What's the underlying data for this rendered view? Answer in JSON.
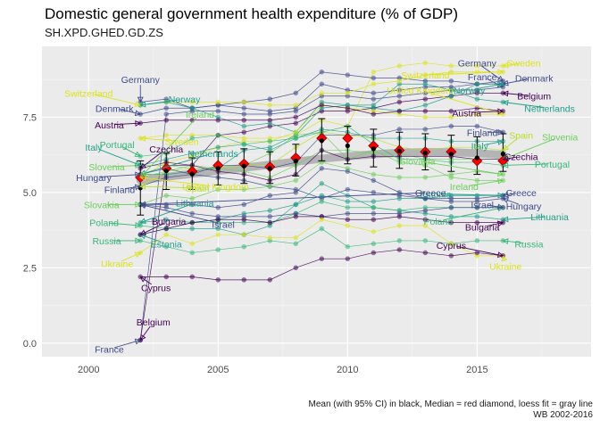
{
  "title": "Domestic general government health expenditure (% of GDP)",
  "subtitle": "SH.XPD.GHED.GD.ZS",
  "caption_line1": "Mean (with 95% CI) in black, Median = red diamond, loess fit = gray line",
  "caption_line2": "WB 2002-2016",
  "chart_data": {
    "type": "line",
    "title": "Domestic general government health expenditure (% of GDP)",
    "subtitle": "SH.XPD.GHED.GD.ZS",
    "xlabel": "",
    "ylabel": "",
    "xlim": [
      1998.2,
      2019.4
    ],
    "ylim": [
      -0.45,
      9.85
    ],
    "x_ticks": [
      2000,
      2005,
      2010,
      2015
    ],
    "y_ticks": [
      0.0,
      2.5,
      5.0,
      7.5
    ],
    "y_tick_labels": [
      "0.0",
      "2.5",
      "5.0",
      "7.5"
    ],
    "grid": true,
    "legend": "none (labels placed at line ends)",
    "x": [
      2002,
      2003,
      2004,
      2005,
      2006,
      2007,
      2008,
      2009,
      2010,
      2011,
      2012,
      2013,
      2014,
      2015,
      2016
    ],
    "series": [
      {
        "name": "Sweden",
        "color": "#DCE319",
        "start_label_pos": [
          2003.6,
          6.7
        ],
        "end_label_pos": [
          2016.8,
          9.3
        ],
        "values": [
          6.8,
          6.9,
          6.9,
          6.9,
          6.8,
          6.8,
          6.9,
          7.4,
          7.2,
          9.0,
          9.2,
          9.3,
          9.2,
          9.2,
          9.2
        ]
      },
      {
        "name": "Germany",
        "color": "#3E4A89",
        "start_label_pos": [
          2002.0,
          8.75
        ],
        "end_label_pos": [
          2015.0,
          9.3
        ],
        "values": [
          8.0,
          8.1,
          7.8,
          7.9,
          7.8,
          7.7,
          7.8,
          8.6,
          8.4,
          8.3,
          8.4,
          8.5,
          8.5,
          8.6,
          8.7
        ]
      },
      {
        "name": "France",
        "color": "#3E4A89",
        "start_label_pos": [
          2000.8,
          -0.2
        ],
        "end_label_pos": [
          2015.2,
          8.85
        ],
        "values": [
          0.1,
          7.6,
          7.7,
          7.7,
          7.6,
          7.6,
          7.7,
          8.2,
          8.2,
          8.1,
          8.2,
          8.3,
          8.4,
          8.4,
          8.5
        ]
      },
      {
        "name": "Denmark",
        "color": "#3E4A89",
        "start_label_pos": [
          2001.0,
          7.8
        ],
        "end_label_pos": [
          2017.2,
          8.8
        ],
        "values": [
          7.6,
          7.8,
          7.8,
          7.9,
          8.0,
          8.1,
          8.3,
          9.0,
          8.9,
          8.8,
          8.8,
          8.7,
          8.7,
          8.6,
          8.6
        ]
      },
      {
        "name": "Belgium",
        "color": "#440154",
        "start_label_pos": [
          2002.5,
          0.7
        ],
        "end_label_pos": [
          2017.2,
          8.2
        ],
        "values": [
          0.1,
          5.9,
          5.9,
          6.9,
          7.0,
          7.2,
          7.3,
          7.7,
          7.7,
          7.8,
          8.0,
          8.1,
          8.2,
          8.3,
          8.3
        ]
      },
      {
        "name": "Netherlands",
        "color": "#1F9E89",
        "start_label_pos": [
          2004.8,
          6.3
        ],
        "end_label_pos": [
          2017.8,
          7.8
        ],
        "values": [
          5.6,
          5.6,
          5.7,
          5.8,
          6.4,
          6.5,
          6.9,
          7.8,
          7.9,
          7.9,
          8.6,
          8.6,
          8.4,
          8.1,
          8.0
        ]
      },
      {
        "name": "Switzerland",
        "color": "#DCE319",
        "start_label_pos": [
          2000.0,
          8.3
        ],
        "end_label_pos": [
          2013.0,
          8.9
        ],
        "values": [
          7.9,
          8.0,
          8.0,
          8.0,
          8.0,
          7.9,
          7.9,
          8.3,
          8.3,
          8.6,
          8.7,
          8.9,
          9.0,
          9.0,
          9.0
        ]
      },
      {
        "name": "Norway",
        "color": "#1F9E89",
        "start_label_pos": [
          2003.7,
          8.1
        ],
        "end_label_pos": [
          2014.7,
          8.4
        ],
        "values": [
          7.9,
          8.0,
          7.8,
          7.5,
          7.2,
          7.3,
          7.0,
          8.0,
          7.9,
          7.8,
          7.7,
          7.9,
          8.2,
          8.6,
          8.6
        ]
      },
      {
        "name": "United Kingdom",
        "color": "#DCE319",
        "start_label_pos": [
          2004.9,
          5.2
        ],
        "end_label_pos": [
          2012.8,
          8.4
        ],
        "values": [
          5.5,
          6.0,
          6.2,
          6.5,
          6.7,
          6.7,
          7.0,
          7.9,
          7.8,
          7.7,
          7.6,
          7.5,
          7.5,
          7.6,
          7.6
        ]
      },
      {
        "name": "Ireland",
        "color": "#6CCE59",
        "start_label_pos": [
          2004.3,
          7.6
        ],
        "end_label_pos": [
          2014.5,
          5.2
        ],
        "values": [
          5.5,
          5.7,
          5.9,
          5.8,
          5.9,
          6.3,
          6.9,
          7.0,
          6.1,
          6.4,
          6.0,
          5.9,
          5.5,
          5.4,
          5.4
        ]
      },
      {
        "name": "Austria",
        "color": "#440154",
        "start_label_pos": [
          2000.8,
          7.25
        ],
        "end_label_pos": [
          2014.6,
          7.65
        ],
        "values": [
          7.3,
          7.4,
          7.4,
          7.4,
          7.4,
          7.4,
          7.5,
          7.9,
          7.8,
          7.6,
          7.7,
          7.7,
          7.7,
          7.8,
          7.7
        ]
      },
      {
        "name": "Finland",
        "color": "#3E4A89",
        "start_label_pos": [
          2001.2,
          5.1
        ],
        "end_label_pos": [
          2015.2,
          7.0
        ],
        "values": [
          5.2,
          5.5,
          5.6,
          5.9,
          5.9,
          5.8,
          6.0,
          6.9,
          6.9,
          6.9,
          7.1,
          7.1,
          7.2,
          7.2,
          7.0
        ]
      },
      {
        "name": "Spain",
        "color": "#B8DE29",
        "start_label_pos": [
          2004.2,
          5.15
        ],
        "end_label_pos": [
          2016.7,
          6.9
        ],
        "values": [
          5.2,
          5.7,
          5.8,
          5.8,
          5.9,
          5.9,
          6.5,
          7.0,
          6.9,
          6.8,
          6.5,
          6.4,
          6.5,
          6.5,
          6.4
        ]
      },
      {
        "name": "Slovenia",
        "color": "#6CCE59",
        "start_label_pos": [
          2000.7,
          5.85
        ],
        "end_label_pos": [
          2018.2,
          6.85
        ],
        "values": [
          5.9,
          5.9,
          5.8,
          5.8,
          5.7,
          5.5,
          5.9,
          6.4,
          6.4,
          6.3,
          6.3,
          6.1,
          6.1,
          6.1,
          6.1
        ]
      },
      {
        "name": "Italy",
        "color": "#1F9E89",
        "start_label_pos": [
          2000.2,
          6.5
        ],
        "end_label_pos": [
          2015.1,
          6.55
        ],
        "values": [
          5.9,
          6.1,
          6.3,
          6.5,
          6.6,
          6.4,
          6.8,
          7.1,
          7.0,
          6.8,
          6.8,
          6.8,
          6.7,
          6.7,
          6.7
        ]
      },
      {
        "name": "Czechia",
        "color": "#440154",
        "start_label_pos": [
          2003.0,
          6.45
        ],
        "end_label_pos": [
          2016.7,
          6.2
        ],
        "values": [
          5.8,
          6.0,
          5.9,
          5.7,
          5.6,
          5.4,
          5.6,
          6.4,
          6.1,
          6.2,
          6.2,
          6.2,
          6.2,
          6.1,
          6.1
        ]
      },
      {
        "name": "Portugal",
        "color": "#35B779",
        "start_label_pos": [
          2001.1,
          6.6
        ],
        "end_label_pos": [
          2017.9,
          5.95
        ],
        "values": [
          6.2,
          6.3,
          6.8,
          6.9,
          6.6,
          6.7,
          6.8,
          7.0,
          7.2,
          6.6,
          6.1,
          6.1,
          6.0,
          6.0,
          5.9
        ]
      },
      {
        "name": "Hungary",
        "color": "#3E4A89",
        "start_label_pos": [
          2000.2,
          5.5
        ],
        "end_label_pos": [
          2016.8,
          4.55
        ],
        "values": [
          5.6,
          5.8,
          5.6,
          5.5,
          5.4,
          5.2,
          5.1,
          4.8,
          5.1,
          5.0,
          4.9,
          4.8,
          4.7,
          4.7,
          4.8
        ]
      },
      {
        "name": "Slovakia",
        "color": "#6CCE59",
        "start_label_pos": [
          2000.5,
          4.6
        ],
        "end_label_pos": [
          2012.7,
          6.05
        ],
        "values": [
          4.6,
          4.9,
          4.8,
          5.1,
          5.1,
          5.2,
          5.4,
          6.0,
          5.8,
          5.6,
          5.5,
          5.5,
          5.6,
          5.7,
          5.6
        ]
      },
      {
        "name": "Lithuania",
        "color": "#1F9E89",
        "start_label_pos": [
          2004.1,
          4.65
        ],
        "end_label_pos": [
          2017.8,
          4.2
        ],
        "values": [
          4.0,
          4.1,
          4.0,
          4.1,
          4.3,
          4.4,
          4.6,
          5.3,
          4.9,
          4.5,
          4.4,
          4.3,
          4.2,
          4.2,
          4.1
        ]
      },
      {
        "name": "Estonia",
        "color": "#1F9E89",
        "start_label_pos": [
          2003.0,
          3.3
        ],
        "end_label_pos": [
          2013.4,
          4.95
        ],
        "values": [
          3.6,
          3.8,
          3.8,
          3.8,
          3.6,
          3.9,
          4.6,
          4.9,
          4.7,
          4.7,
          4.8,
          4.8,
          4.9,
          4.9,
          4.9
        ]
      },
      {
        "name": "Greece",
        "color": "#3E4A89",
        "start_label_pos": [
          2013.2,
          5.0
        ],
        "end_label_pos": [
          2016.7,
          5.0
        ],
        "values": [
          4.6,
          4.6,
          4.6,
          4.5,
          4.6,
          4.9,
          5.0,
          5.8,
          5.7,
          5.4,
          5.0,
          4.8,
          4.8,
          4.8,
          4.9
        ]
      },
      {
        "name": "Poland",
        "color": "#35B779",
        "start_label_pos": [
          2000.6,
          4.0
        ],
        "end_label_pos": [
          2013.5,
          4.05
        ],
        "values": [
          3.9,
          3.8,
          4.0,
          4.0,
          4.0,
          4.0,
          4.3,
          4.7,
          4.5,
          4.5,
          4.4,
          4.5,
          4.5,
          4.5,
          4.5
        ]
      },
      {
        "name": "Israel",
        "color": "#3E4A89",
        "start_label_pos": [
          2005.2,
          3.95
        ],
        "end_label_pos": [
          2015.2,
          4.6
        ],
        "values": [
          4.6,
          4.5,
          4.3,
          4.2,
          4.2,
          4.2,
          4.3,
          4.2,
          4.3,
          4.3,
          4.3,
          4.4,
          4.5,
          4.5,
          4.5
        ]
      },
      {
        "name": "Bulgaria",
        "color": "#440154",
        "start_label_pos": [
          2003.1,
          4.05
        ],
        "end_label_pos": [
          2015.2,
          3.85
        ],
        "values": [
          3.6,
          3.8,
          4.0,
          4.1,
          4.1,
          4.0,
          4.2,
          4.2,
          4.1,
          4.1,
          4.2,
          4.1,
          4.0,
          4.0,
          4.0
        ]
      },
      {
        "name": "Russia",
        "color": "#35B779",
        "start_label_pos": [
          2000.7,
          3.4
        ],
        "end_label_pos": [
          2017.0,
          3.3
        ],
        "values": [
          3.4,
          3.2,
          3.0,
          3.1,
          3.2,
          3.4,
          3.3,
          3.8,
          3.2,
          3.3,
          3.4,
          3.4,
          3.3,
          3.4,
          3.4
        ]
      },
      {
        "name": "Ukraine",
        "color": "#DCE319",
        "start_label_pos": [
          2001.1,
          2.65
        ],
        "end_label_pos": [
          2016.1,
          2.55
        ],
        "values": [
          3.0,
          3.6,
          3.3,
          3.6,
          3.6,
          3.5,
          3.5,
          4.1,
          3.9,
          3.7,
          3.9,
          3.9,
          3.3,
          2.9,
          2.9
        ]
      },
      {
        "name": "Cyprus",
        "color": "#440154",
        "start_label_pos": [
          2002.6,
          1.85
        ],
        "end_label_pos": [
          2014.0,
          3.25
        ],
        "values": [
          2.2,
          2.2,
          2.2,
          2.1,
          2.1,
          2.1,
          2.5,
          2.8,
          2.8,
          3.0,
          3.1,
          3.0,
          2.9,
          3.0,
          2.9
        ]
      }
    ],
    "summary": {
      "mean": [
        5.15,
        5.72,
        5.62,
        5.8,
        5.88,
        5.8,
        6.05,
        6.72,
        6.55,
        6.45,
        6.38,
        6.32,
        6.28,
        6.15,
        6.28
      ],
      "mean_ci_low": [
        4.25,
        5.1,
        5.1,
        5.25,
        5.3,
        5.3,
        5.55,
        6.05,
        5.95,
        5.85,
        5.8,
        5.75,
        5.7,
        5.6,
        5.7
      ],
      "mean_ci_high": [
        6.05,
        6.3,
        6.15,
        6.35,
        6.45,
        6.35,
        6.6,
        7.45,
        7.2,
        7.1,
        7.0,
        6.95,
        6.9,
        6.85,
        6.95
      ],
      "median": [
        5.5,
        5.8,
        5.7,
        5.9,
        5.95,
        5.85,
        6.15,
        6.8,
        6.8,
        6.55,
        6.4,
        6.35,
        6.35,
        6.05,
        6.05
      ],
      "loess": [
        5.4,
        5.52,
        5.62,
        5.72,
        5.82,
        5.92,
        6.02,
        6.12,
        6.2,
        6.27,
        6.32,
        6.34,
        6.34,
        6.3,
        6.25
      ]
    },
    "colors": {
      "panel": "#EBEBEB",
      "grid_major": "#FFFFFF",
      "grid_minor": "#F5F5F5",
      "median_fill": "#FF0000",
      "median_outline": "#8B0000",
      "mean": "#000000",
      "loess": "#AAAAAA"
    }
  }
}
